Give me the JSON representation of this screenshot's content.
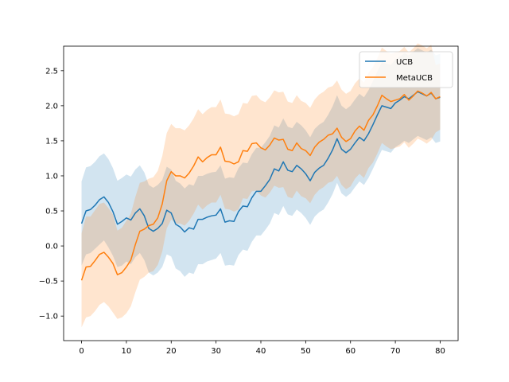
{
  "chart_data": {
    "type": "line",
    "title": "",
    "xlabel": "",
    "ylabel": "",
    "xlim": [
      -4,
      84
    ],
    "ylim": [
      -1.35,
      2.85
    ],
    "xticks": [
      0,
      10,
      20,
      30,
      40,
      50,
      60,
      70,
      80
    ],
    "yticks": [
      -1.0,
      -0.5,
      0.0,
      0.5,
      1.0,
      1.5,
      2.0,
      2.5
    ],
    "ytick_labels": [
      "−1.0",
      "−0.5",
      "0.0",
      "0.5",
      "1.0",
      "1.5",
      "2.0",
      "2.5"
    ],
    "grid": false,
    "legend_position": "top-right",
    "x": [
      0,
      1,
      2,
      3,
      4,
      5,
      6,
      7,
      8,
      9,
      10,
      11,
      12,
      13,
      14,
      15,
      16,
      17,
      18,
      19,
      20,
      21,
      22,
      23,
      24,
      25,
      26,
      27,
      28,
      29,
      30,
      31,
      32,
      33,
      34,
      35,
      36,
      37,
      38,
      39,
      40,
      41,
      42,
      43,
      44,
      45,
      46,
      47,
      48,
      49,
      50,
      51,
      52,
      53,
      54,
      55,
      56,
      57,
      58,
      59,
      60,
      61,
      62,
      63,
      64,
      65,
      66,
      67,
      68,
      69,
      70,
      71,
      72,
      73,
      74,
      75,
      76,
      77,
      78,
      79,
      80
    ],
    "series": [
      {
        "name": "UCB",
        "color": "#1f77b4",
        "band_color": "#1f77b4",
        "values": [
          0.32,
          0.5,
          0.52,
          0.58,
          0.66,
          0.7,
          0.62,
          0.49,
          0.31,
          0.35,
          0.4,
          0.37,
          0.47,
          0.53,
          0.43,
          0.25,
          0.21,
          0.25,
          0.32,
          0.51,
          0.47,
          0.31,
          0.27,
          0.2,
          0.26,
          0.24,
          0.38,
          0.38,
          0.41,
          0.43,
          0.44,
          0.53,
          0.34,
          0.36,
          0.35,
          0.49,
          0.57,
          0.56,
          0.69,
          0.78,
          0.78,
          0.86,
          0.95,
          1.1,
          1.07,
          1.2,
          1.08,
          1.06,
          1.15,
          1.1,
          1.03,
          0.93,
          1.05,
          1.11,
          1.15,
          1.25,
          1.37,
          1.53,
          1.38,
          1.33,
          1.38,
          1.47,
          1.55,
          1.5,
          1.6,
          1.73,
          1.87,
          2.0,
          1.98,
          1.96,
          2.04,
          2.08,
          2.13,
          2.1,
          2.15,
          2.2,
          2.17,
          2.14,
          2.18,
          2.1,
          2.12
        ],
        "lower": [
          -0.28,
          -0.12,
          -0.1,
          -0.04,
          0.02,
          0.08,
          -0.02,
          -0.14,
          -0.3,
          -0.28,
          -0.22,
          -0.26,
          -0.16,
          -0.1,
          -0.2,
          -0.38,
          -0.42,
          -0.38,
          -0.3,
          -0.12,
          -0.15,
          -0.32,
          -0.36,
          -0.44,
          -0.38,
          -0.4,
          -0.26,
          -0.26,
          -0.22,
          -0.2,
          -0.18,
          -0.1,
          -0.28,
          -0.27,
          -0.28,
          -0.13,
          -0.05,
          -0.07,
          0.06,
          0.15,
          0.15,
          0.23,
          0.32,
          0.47,
          0.44,
          0.57,
          0.45,
          0.43,
          0.52,
          0.47,
          0.4,
          0.3,
          0.42,
          0.48,
          0.52,
          0.62,
          0.74,
          0.9,
          0.75,
          0.7,
          0.75,
          0.84,
          0.92,
          0.87,
          0.97,
          1.1,
          1.24,
          1.37,
          1.35,
          1.33,
          1.41,
          1.45,
          1.5,
          1.47,
          1.52,
          1.57,
          1.54,
          1.51,
          1.55,
          1.47,
          1.49
        ],
        "upper": [
          0.92,
          1.12,
          1.14,
          1.2,
          1.28,
          1.32,
          1.24,
          1.11,
          0.93,
          0.97,
          1.02,
          0.99,
          1.09,
          1.15,
          1.05,
          0.87,
          0.83,
          0.87,
          0.94,
          1.13,
          1.09,
          0.93,
          0.89,
          0.82,
          0.88,
          0.86,
          1.0,
          1.0,
          1.03,
          1.05,
          1.06,
          1.15,
          0.96,
          0.98,
          0.97,
          1.11,
          1.19,
          1.18,
          1.31,
          1.4,
          1.4,
          1.48,
          1.57,
          1.72,
          1.69,
          1.82,
          1.7,
          1.68,
          1.77,
          1.72,
          1.65,
          1.55,
          1.67,
          1.73,
          1.77,
          1.87,
          1.99,
          2.15,
          2.0,
          1.95,
          2.0,
          2.09,
          2.17,
          2.12,
          2.22,
          2.35,
          2.49,
          2.62,
          2.6,
          2.58,
          2.66,
          2.7,
          2.75,
          2.72,
          2.77,
          2.82,
          2.79,
          2.76,
          2.8,
          2.72,
          2.74
        ]
      },
      {
        "name": "MetaUCB",
        "color": "#ff7f0e",
        "band_color": "#ff7f0e",
        "values": [
          -0.49,
          -0.3,
          -0.29,
          -0.21,
          -0.12,
          -0.09,
          -0.16,
          -0.25,
          -0.41,
          -0.38,
          -0.3,
          -0.2,
          0.02,
          0.21,
          0.24,
          0.29,
          0.31,
          0.4,
          0.6,
          0.93,
          1.06,
          1.0,
          1.0,
          0.97,
          1.04,
          1.14,
          1.27,
          1.2,
          1.26,
          1.3,
          1.3,
          1.41,
          1.21,
          1.2,
          1.17,
          1.2,
          1.36,
          1.35,
          1.46,
          1.47,
          1.4,
          1.37,
          1.44,
          1.54,
          1.51,
          1.52,
          1.38,
          1.36,
          1.47,
          1.39,
          1.36,
          1.29,
          1.41,
          1.48,
          1.52,
          1.58,
          1.6,
          1.68,
          1.55,
          1.49,
          1.53,
          1.64,
          1.71,
          1.65,
          1.79,
          1.87,
          2.0,
          2.15,
          2.1,
          2.06,
          2.08,
          2.1,
          2.16,
          2.08,
          2.14,
          2.21,
          2.18,
          2.14,
          2.19,
          2.1,
          2.13
        ],
        "lower": [
          -1.16,
          -1.02,
          -1.0,
          -0.93,
          -0.84,
          -0.8,
          -0.86,
          -0.95,
          -1.04,
          -1.02,
          -0.96,
          -0.86,
          -0.66,
          -0.48,
          -0.44,
          -0.38,
          -0.36,
          -0.27,
          -0.08,
          0.25,
          0.38,
          0.32,
          0.32,
          0.29,
          0.36,
          0.46,
          0.59,
          0.52,
          0.58,
          0.62,
          0.62,
          0.73,
          0.53,
          0.52,
          0.49,
          0.52,
          0.68,
          0.67,
          0.78,
          0.79,
          0.72,
          0.69,
          0.76,
          0.86,
          0.83,
          0.84,
          0.7,
          0.68,
          0.79,
          0.71,
          0.68,
          0.61,
          0.73,
          0.8,
          0.84,
          0.9,
          0.92,
          1.0,
          0.87,
          0.81,
          0.85,
          0.96,
          1.03,
          0.97,
          1.11,
          1.19,
          1.32,
          1.47,
          1.42,
          1.38,
          1.4,
          1.42,
          1.48,
          1.4,
          1.46,
          1.53,
          1.5,
          1.46,
          1.51,
          1.62,
          1.66
        ],
        "upper": [
          0.18,
          0.42,
          0.42,
          0.51,
          0.6,
          0.62,
          0.54,
          0.45,
          0.22,
          0.26,
          0.36,
          0.46,
          0.7,
          0.9,
          0.92,
          0.96,
          0.98,
          1.07,
          1.28,
          1.61,
          1.74,
          1.68,
          1.68,
          1.65,
          1.72,
          1.82,
          1.95,
          1.88,
          1.94,
          1.98,
          1.98,
          2.09,
          1.89,
          1.88,
          1.85,
          1.88,
          2.04,
          2.03,
          2.14,
          2.15,
          2.08,
          2.05,
          2.12,
          2.22,
          2.19,
          2.2,
          2.06,
          2.04,
          2.15,
          2.07,
          2.04,
          1.97,
          2.09,
          2.16,
          2.2,
          2.26,
          2.28,
          2.36,
          2.23,
          2.17,
          2.21,
          2.32,
          2.39,
          2.33,
          2.47,
          2.55,
          2.68,
          2.83,
          2.78,
          2.74,
          2.76,
          2.78,
          2.84,
          2.76,
          2.82,
          2.89,
          2.86,
          2.82,
          2.87,
          2.58,
          2.6
        ]
      }
    ]
  }
}
